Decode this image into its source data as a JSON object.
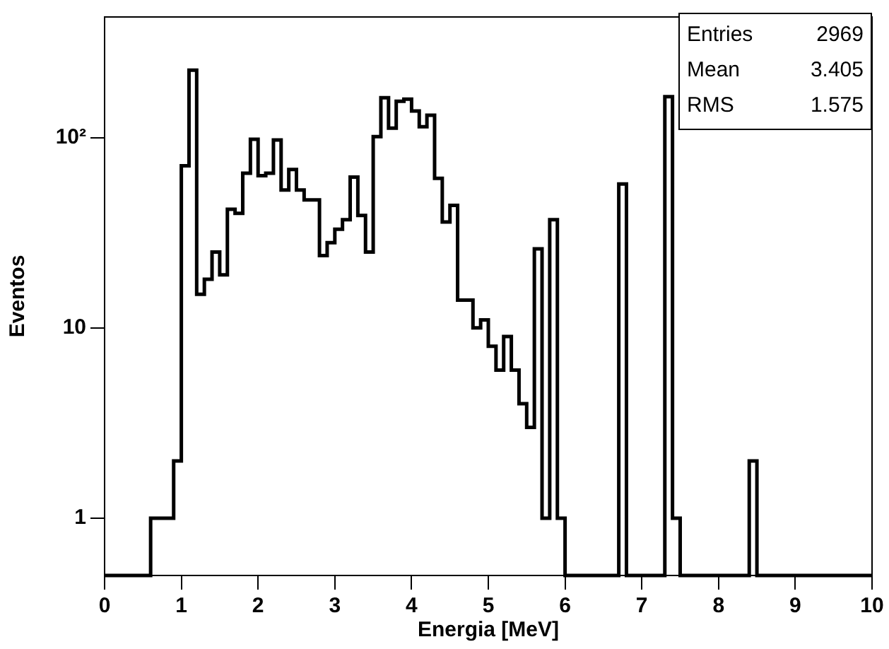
{
  "chart_data": {
    "type": "histogram",
    "xlabel": "Energia [MeV]",
    "ylabel": "Eventos",
    "bins": [
      0,
      0.1,
      0.2,
      0.3,
      0.4,
      0.5,
      0.6,
      0.7,
      0.8,
      0.9,
      1,
      1.1,
      1.2,
      1.3,
      1.4,
      1.5,
      1.6,
      1.7,
      1.8,
      1.9,
      2,
      2.1,
      2.2,
      2.3,
      2.4,
      2.5,
      2.6,
      2.7,
      2.8,
      2.9,
      3,
      3.1,
      3.2,
      3.3,
      3.4,
      3.5,
      3.6,
      3.7,
      3.8,
      3.9,
      4,
      4.1,
      4.2,
      4.3,
      4.4,
      4.5,
      4.6,
      4.7,
      4.8,
      4.9,
      5,
      5.1,
      5.2,
      5.3,
      5.4,
      5.5,
      5.6,
      5.7,
      5.8,
      5.9,
      6,
      6.1,
      6.2,
      6.3,
      6.4,
      6.5,
      6.6,
      6.7,
      6.8,
      6.9,
      7,
      7.1,
      7.2,
      7.3,
      7.4,
      7.5,
      7.6,
      7.7,
      7.8,
      7.9,
      8,
      8.1,
      8.2,
      8.3,
      8.4,
      8.5,
      8.6,
      8.7,
      8.8,
      8.9,
      9,
      9.1,
      9.2,
      9.3,
      9.4,
      9.5,
      9.6,
      9.7,
      9.8,
      9.9,
      10
    ],
    "values": [
      null,
      null,
      null,
      null,
      null,
      null,
      1,
      1,
      1,
      2,
      71,
      226,
      15,
      18,
      25,
      19,
      42,
      40,
      65,
      98,
      63,
      65,
      97,
      53,
      68,
      53,
      47,
      47,
      24,
      28,
      33,
      37,
      62,
      39,
      25,
      101,
      162,
      112,
      155,
      159,
      138,
      114,
      131,
      61,
      36,
      44,
      14,
      14,
      10,
      11,
      8,
      6,
      9,
      6,
      4,
      3,
      26,
      1,
      37,
      1,
      null,
      null,
      null,
      null,
      null,
      null,
      null,
      57,
      null,
      null,
      null,
      null,
      null,
      164,
      1,
      null,
      null,
      null,
      null,
      null,
      null,
      null,
      null,
      null,
      2,
      null,
      null,
      null,
      null,
      null,
      null,
      null,
      null,
      null,
      null,
      null,
      null,
      null,
      null,
      null
    ],
    "color": "#000000",
    "xlim": [
      0,
      10
    ],
    "xticks": [
      0,
      1,
      2,
      3,
      4,
      5,
      6,
      7,
      8,
      9,
      10
    ],
    "ylim": [
      0.5,
      430
    ],
    "yticks": [
      1,
      10,
      {
        "value": 100,
        "label": "10²"
      }
    ],
    "log": "y",
    "annotations": [
      "Entries 2969",
      "Mean 3.405",
      "RMS 1.575"
    ]
  }
}
